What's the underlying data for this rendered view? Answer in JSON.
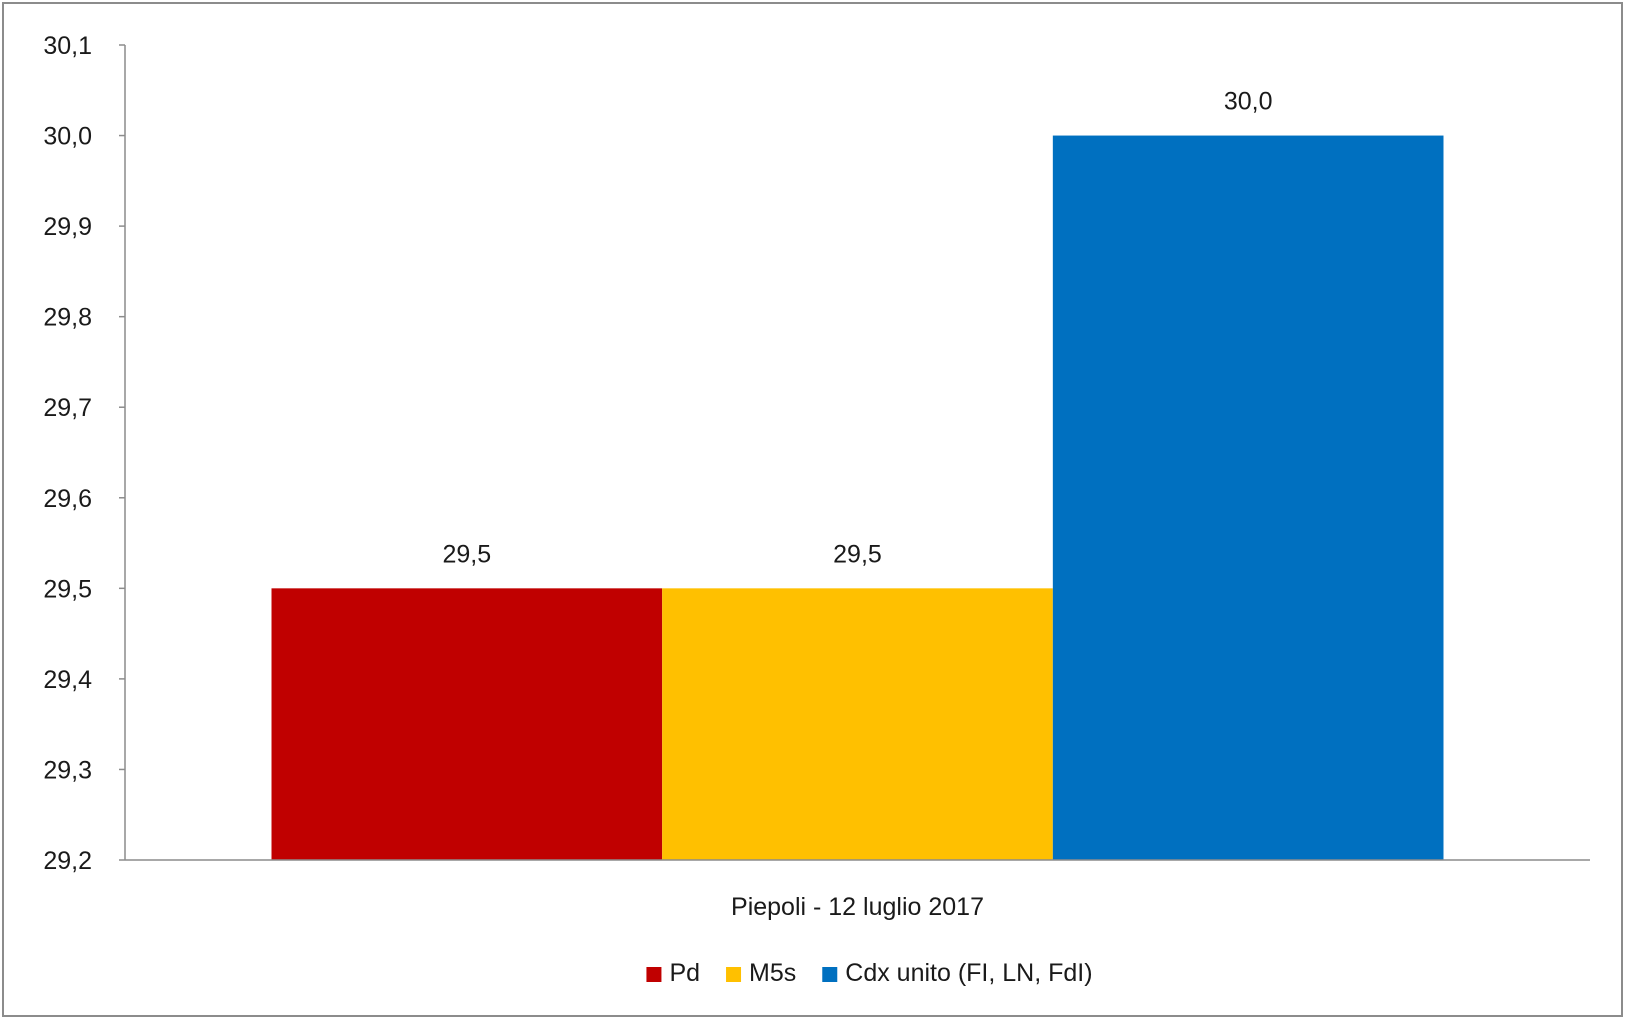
{
  "chart_data": {
    "type": "bar",
    "categories": [
      "Piepoli - 12 luglio 2017"
    ],
    "series": [
      {
        "name": "Pd",
        "values": [
          29.5
        ],
        "color": "#C00000",
        "label": "29,5"
      },
      {
        "name": "M5s",
        "values": [
          29.5
        ],
        "color": "#FFC000",
        "label": "29,5"
      },
      {
        "name": "Cdx unito (FI, LN, FdI)",
        "values": [
          30.0
        ],
        "color": "#0070C0",
        "label": "30,0"
      }
    ],
    "ylim": [
      29.2,
      30.1
    ],
    "yticks": [
      29.2,
      29.3,
      29.4,
      29.5,
      29.6,
      29.7,
      29.8,
      29.9,
      30.0,
      30.1
    ],
    "ytick_labels": [
      "29,2",
      "29,3",
      "29,4",
      "29,5",
      "29,6",
      "29,7",
      "29,8",
      "29,9",
      "30,0",
      "30,1"
    ],
    "grid": false,
    "legend": "bottom",
    "axis_color": "#8c8c8c"
  }
}
